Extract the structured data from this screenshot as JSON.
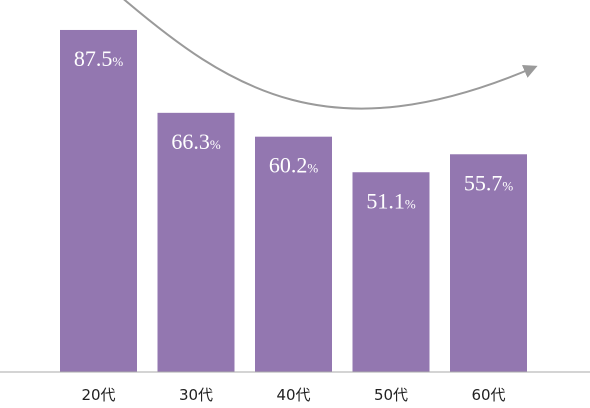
{
  "chart_data": {
    "type": "bar",
    "categories": [
      "20代",
      "30代",
      "40代",
      "50代",
      "60代"
    ],
    "values": [
      87.5,
      66.3,
      60.2,
      51.1,
      55.7
    ],
    "value_labels": [
      "87.5",
      "66.3",
      "60.2",
      "51.1",
      "55.7"
    ],
    "value_suffix": "%",
    "ylim": [
      0,
      100
    ],
    "title": "",
    "xlabel": "",
    "ylabel": "",
    "grid": false,
    "legend": "none",
    "bar_color": "#9377b0",
    "annotation": "curved-trend-arrow"
  }
}
